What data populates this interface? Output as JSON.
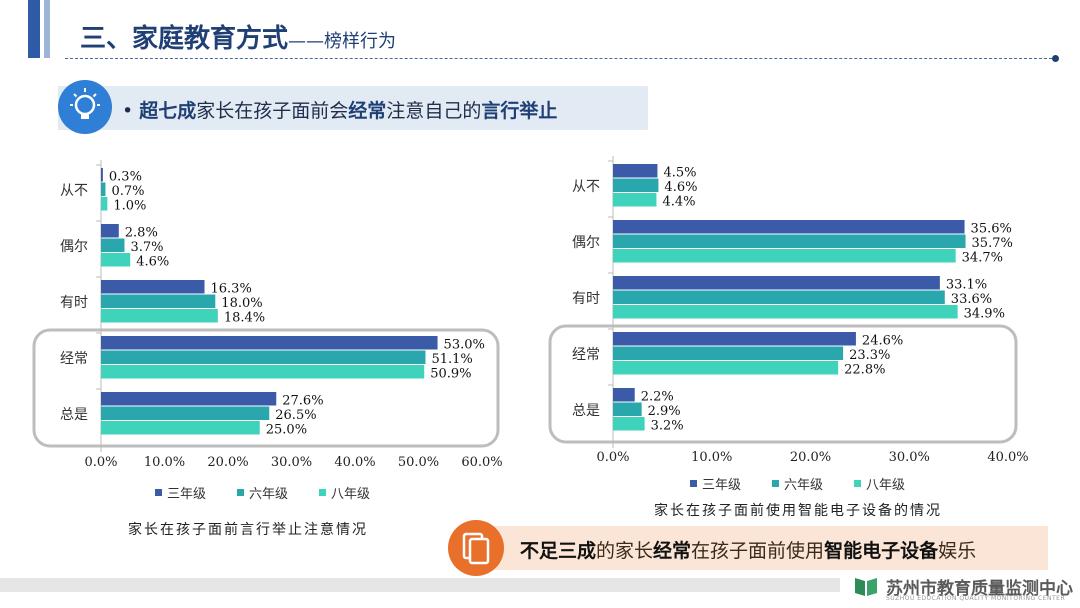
{
  "header": {
    "title": "三、家庭教育方式",
    "subtitle": "——榜样行为"
  },
  "headline": {
    "bullet": "•",
    "parts": [
      "超七成",
      "家长在孩子面前会",
      "经常",
      "注意自己的",
      "言行举止"
    ]
  },
  "note": {
    "parts": [
      "不足三成",
      "的家长",
      "经常",
      "在孩子面前使用",
      "智能电子设备",
      "娱乐"
    ]
  },
  "footer": {
    "org": "苏州市教育质量监测中心",
    "org_en": "SUZHOU EDUCATION QUALITY MONITORING CENTER"
  },
  "colors": {
    "grade3": "#3b5ba9",
    "grade6": "#2aa7ad",
    "grade8": "#3fd3bb",
    "title": "#1f3f75"
  },
  "chart_data": [
    {
      "type": "bar",
      "orientation": "horizontal",
      "title": "家长在孩子面前言行举止注意情况",
      "categories": [
        "从不",
        "偶尔",
        "有时",
        "经常",
        "总是"
      ],
      "series": [
        {
          "name": "三年级",
          "values": [
            0.3,
            2.8,
            16.3,
            53.0,
            27.6
          ]
        },
        {
          "name": "六年级",
          "values": [
            0.7,
            3.7,
            18.0,
            51.1,
            26.5
          ]
        },
        {
          "name": "八年级",
          "values": [
            1.0,
            4.6,
            18.4,
            50.9,
            25.0
          ]
        }
      ],
      "xlim": [
        0,
        60
      ],
      "xticks": [
        "0.0%",
        "10.0%",
        "20.0%",
        "30.0%",
        "40.0%",
        "50.0%",
        "60.0%"
      ],
      "highlight": [
        "经常",
        "总是"
      ],
      "legend": "bottom"
    },
    {
      "type": "bar",
      "orientation": "horizontal",
      "title": "家长在孩子面前使用智能电子设备的情况",
      "categories": [
        "从不",
        "偶尔",
        "有时",
        "经常",
        "总是"
      ],
      "series": [
        {
          "name": "三年级",
          "values": [
            4.5,
            35.6,
            33.1,
            24.6,
            2.2
          ]
        },
        {
          "name": "六年级",
          "values": [
            4.6,
            35.7,
            33.6,
            23.3,
            2.9
          ]
        },
        {
          "name": "八年级",
          "values": [
            4.4,
            34.7,
            34.9,
            22.8,
            3.2
          ]
        }
      ],
      "xlim": [
        0,
        40
      ],
      "xticks": [
        "0.0%",
        "10.0%",
        "20.0%",
        "30.0%",
        "40.0%"
      ],
      "highlight": [
        "经常",
        "总是"
      ],
      "legend": "bottom"
    }
  ]
}
